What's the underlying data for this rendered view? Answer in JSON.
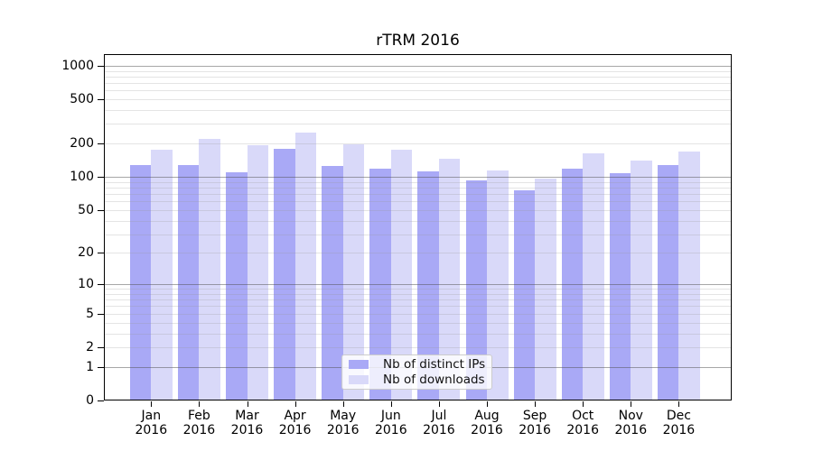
{
  "chart_data": {
    "type": "bar",
    "title": "rTRM 2016",
    "year_label": "2016",
    "categories": [
      "Jan",
      "Feb",
      "Mar",
      "Apr",
      "May",
      "Jun",
      "Jul",
      "Aug",
      "Sep",
      "Oct",
      "Nov",
      "Dec"
    ],
    "series": [
      {
        "name": "Nb of distinct IPs",
        "color": "#a9a9f6",
        "values": [
          127,
          127,
          111,
          180,
          125,
          118,
          112,
          93,
          75,
          118,
          107,
          127
        ]
      },
      {
        "name": "Nb of downloads",
        "color": "#d9d9f9",
        "values": [
          177,
          220,
          193,
          253,
          197,
          177,
          146,
          115,
          97,
          163,
          140,
          170
        ]
      }
    ],
    "yscale": "log1p",
    "ylim": [
      0,
      1271
    ],
    "yticks": [
      0,
      1,
      2,
      5,
      10,
      20,
      50,
      100,
      200,
      500,
      1000
    ],
    "grid": {
      "major": [
        1,
        10,
        100,
        1000
      ],
      "minor": [
        2,
        3,
        4,
        5,
        6,
        7,
        8,
        9,
        20,
        30,
        40,
        50,
        60,
        70,
        80,
        90,
        200,
        300,
        400,
        500,
        600,
        700,
        800,
        900
      ]
    },
    "legend_position": "bottom-center-inside",
    "xlabel": "",
    "ylabel": ""
  }
}
